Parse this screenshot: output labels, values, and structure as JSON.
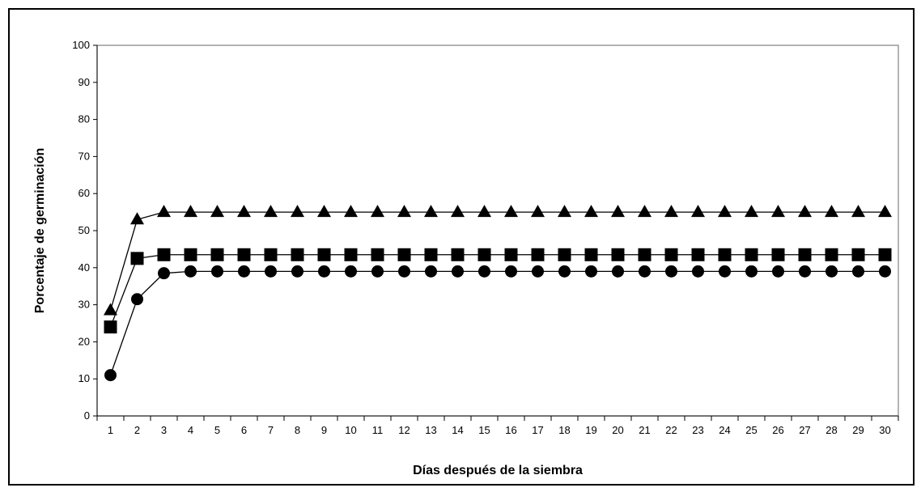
{
  "chart_data": {
    "type": "line",
    "title": "",
    "xlabel": "Días después de la siembra",
    "ylabel": "Porcentaje de germinación",
    "ylim": [
      0,
      100
    ],
    "yticks": [
      0,
      10,
      20,
      30,
      40,
      50,
      60,
      70,
      80,
      90,
      100
    ],
    "categories": [
      "1",
      "2",
      "3",
      "4",
      "5",
      "6",
      "7",
      "8",
      "9",
      "10",
      "11",
      "12",
      "13",
      "14",
      "15",
      "16",
      "17",
      "18",
      "19",
      "20",
      "21",
      "22",
      "23",
      "24",
      "25",
      "26",
      "27",
      "28",
      "29",
      "30"
    ],
    "grid": false,
    "legend": "none",
    "series": [
      {
        "marker": "triangle",
        "color": "#000000",
        "values": [
          28.5,
          53,
          55,
          55,
          55,
          55,
          55,
          55,
          55,
          55,
          55,
          55,
          55,
          55,
          55,
          55,
          55,
          55,
          55,
          55,
          55,
          55,
          55,
          55,
          55,
          55,
          55,
          55,
          55,
          55
        ]
      },
      {
        "marker": "square",
        "color": "#000000",
        "values": [
          24,
          42.5,
          43.5,
          43.5,
          43.5,
          43.5,
          43.5,
          43.5,
          43.5,
          43.5,
          43.5,
          43.5,
          43.5,
          43.5,
          43.5,
          43.5,
          43.5,
          43.5,
          43.5,
          43.5,
          43.5,
          43.5,
          43.5,
          43.5,
          43.5,
          43.5,
          43.5,
          43.5,
          43.5,
          43.5
        ]
      },
      {
        "marker": "circle",
        "color": "#000000",
        "values": [
          11,
          31.5,
          38.5,
          39,
          39,
          39,
          39,
          39,
          39,
          39,
          39,
          39,
          39,
          39,
          39,
          39,
          39,
          39,
          39,
          39,
          39,
          39,
          39,
          39,
          39,
          39,
          39,
          39,
          39,
          39
        ]
      }
    ]
  }
}
